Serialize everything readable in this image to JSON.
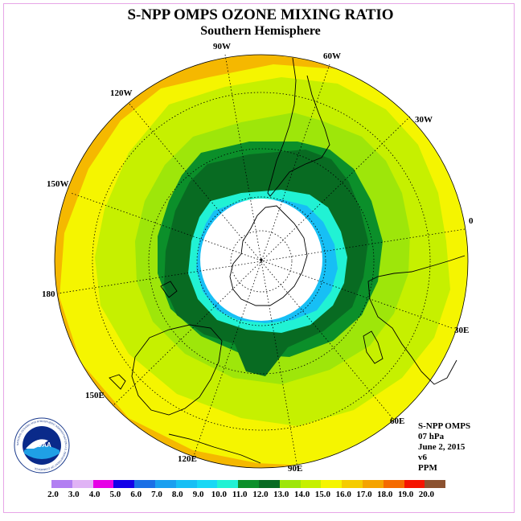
{
  "title": "S-NPP OMPS OZONE MIXING RATIO",
  "subtitle": "Southern Hemisphere",
  "longitude_labels": {
    "w90": "90W",
    "w60": "60W",
    "w30": "30W",
    "w120": "120W",
    "w150": "150W",
    "e0": "0",
    "e180": "180",
    "e30": "30E",
    "e60": "60E",
    "e90": "90E",
    "e120": "120E",
    "e150": "150E"
  },
  "info": {
    "instrument": "S-NPP OMPS",
    "level": "07 hPa",
    "date": "June 2, 2015",
    "version": "v6",
    "units": "PPM"
  },
  "logo": {
    "text": "NOAA",
    "ring_text": "NATIONAL OCEANIC AND ATMOSPHERIC ADMINISTRATION U.S. DEPARTMENT OF COMMERCE"
  },
  "colorbar": {
    "labels": [
      "2.0",
      "3.0",
      "4.0",
      "5.0",
      "6.0",
      "7.0",
      "8.0",
      "9.0",
      "10.0",
      "11.0",
      "12.0",
      "13.0",
      "14.0",
      "15.0",
      "16.0",
      "17.0",
      "18.0",
      "19.0",
      "20.0"
    ],
    "colors": [
      "#b27ff2",
      "#e0b3f5",
      "#e600e6",
      "#1400e8",
      "#1a6fe6",
      "#199ff0",
      "#17bff5",
      "#18d8f5",
      "#21f2d4",
      "#0b8f2a",
      "#086b22",
      "#9ee60a",
      "#c6f000",
      "#f5f500",
      "#f5cc00",
      "#f5a300",
      "#f56a00",
      "#f51400",
      "#8c5230"
    ]
  },
  "map_colors": {
    "orange": "#f5b800",
    "yellow": "#f5f500",
    "light_green": "#c6f000",
    "green": "#9ee60a",
    "mid_green": "#0b8f2a",
    "dark_green": "#086b22",
    "cyan": "#21f2d4",
    "blue": "#17bff5",
    "polar_night": "#ffffff"
  }
}
